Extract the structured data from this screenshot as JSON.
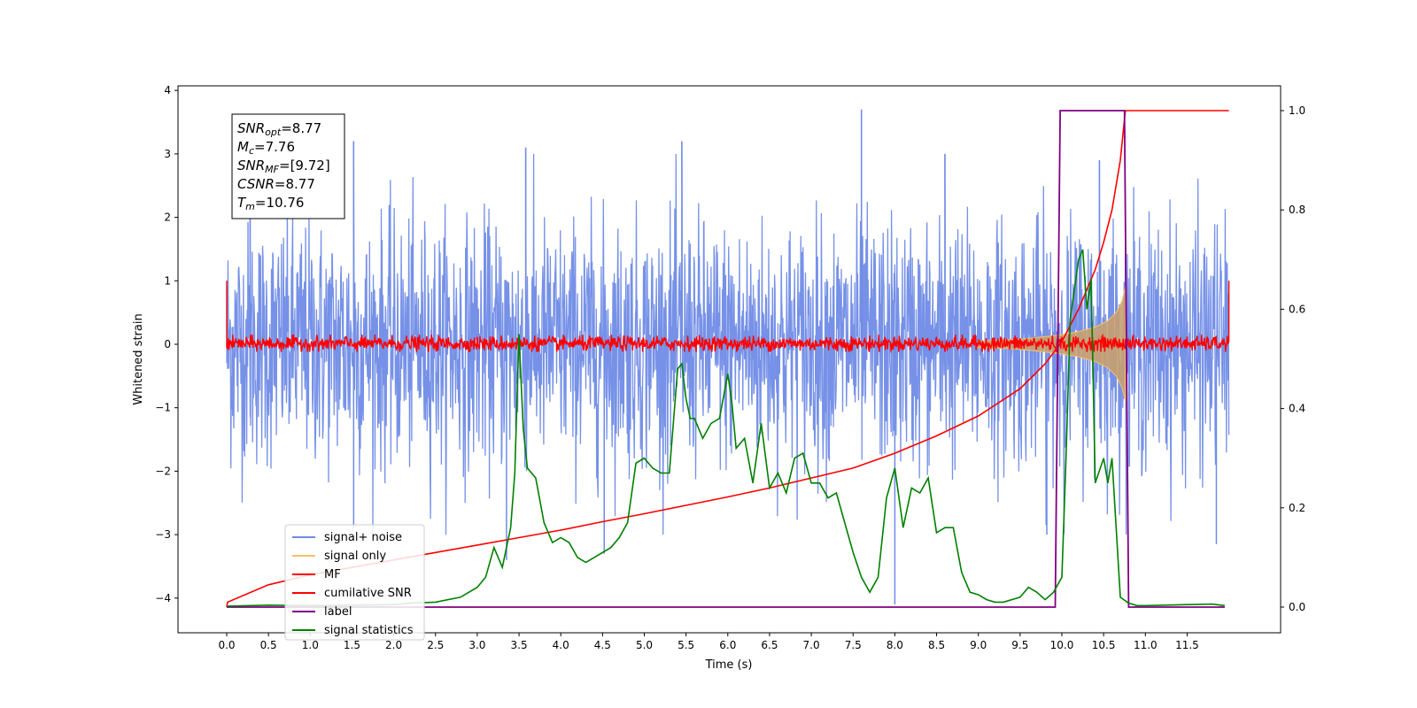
{
  "chart_data": {
    "type": "line",
    "xlabel": "Time (s)",
    "ylabel": "Whitened strain",
    "xlim": [
      -0.6,
      12.6
    ],
    "ylim": [
      -4.55,
      4.1
    ],
    "y2lim": [
      -0.05,
      1.05
    ],
    "x_ticks": [
      "0.0",
      "0.5",
      "1.0",
      "1.5",
      "2.0",
      "2.5",
      "3.0",
      "3.5",
      "4.0",
      "4.5",
      "5.0",
      "5.5",
      "6.0",
      "6.5",
      "7.0",
      "7.5",
      "8.0",
      "8.5",
      "9.0",
      "9.5",
      "10.0",
      "10.5",
      "11.0",
      "11.5"
    ],
    "x_tick_values": [
      0.0,
      0.5,
      1.0,
      1.5,
      2.0,
      2.5,
      3.0,
      3.5,
      4.0,
      4.5,
      5.0,
      5.5,
      6.0,
      6.5,
      7.0,
      7.5,
      8.0,
      8.5,
      9.0,
      9.5,
      10.0,
      10.5,
      11.0,
      11.5
    ],
    "y_ticks": [
      "4",
      "3",
      "2",
      "1",
      "0",
      "−1",
      "−2",
      "−3",
      "−4"
    ],
    "y_tick_values": [
      4,
      3,
      2,
      1,
      0,
      -1,
      -2,
      -3,
      -4
    ],
    "y2_ticks": [
      "1.0",
      "0.8",
      "0.6",
      "0.4",
      "0.2",
      "0.0"
    ],
    "y2_tick_values": [
      1.0,
      0.8,
      0.6,
      0.4,
      0.2,
      0.0
    ],
    "grid": false,
    "legend_position": "lower-left",
    "legend": [
      {
        "label": "signal+ noise",
        "color": "#6f8be6"
      },
      {
        "label": "signal only",
        "color": "#f5c06b"
      },
      {
        "label": "MF",
        "color": "#ff0000"
      },
      {
        "label": "cumilative SNR",
        "color": "#ff0000"
      },
      {
        "label": "label",
        "color": "#800080"
      },
      {
        "label": "signal statistics",
        "color": "#008000"
      }
    ],
    "annotation": [
      {
        "name": "SNR",
        "sub": "opt",
        "value": "=8.77"
      },
      {
        "name": "M",
        "sub": "c",
        "value": "=7.76"
      },
      {
        "name": "SNR",
        "sub": "MF",
        "value": "=[9.72]"
      },
      {
        "name": "CSNR",
        "sub": "",
        "value": "=8.77"
      },
      {
        "name": "T",
        "sub": "m",
        "value": "=10.76"
      }
    ],
    "series": [
      {
        "name": "signal+ noise",
        "axis": "left",
        "color": "#6f8be6",
        "description_range": [
          -2.9,
          3.7
        ],
        "x_range": [
          0.0,
          12.0
        ],
        "peaks_high": [
          [
            0.28,
            2.8
          ],
          [
            1.52,
            3.2
          ],
          [
            3.58,
            3.1
          ],
          [
            5.45,
            3.2
          ],
          [
            7.6,
            3.7
          ],
          [
            8.6,
            3.0
          ],
          [
            10.45,
            2.9
          ]
        ],
        "peaks_low": [
          [
            1.52,
            -2.9
          ],
          [
            3.35,
            -3.4
          ],
          [
            4.52,
            -3.3
          ],
          [
            8.0,
            -4.1
          ],
          [
            9.82,
            -3.0
          ],
          [
            11.85,
            -3.15
          ]
        ]
      },
      {
        "name": "signal only",
        "axis": "left",
        "color": "#f5c06b",
        "envelope_x": [
          9.0,
          9.5,
          10.0,
          10.2,
          10.4,
          10.55,
          10.65,
          10.72,
          10.76
        ],
        "envelope_y": [
          0.05,
          0.08,
          0.15,
          0.2,
          0.27,
          0.37,
          0.5,
          0.68,
          0.9
        ]
      },
      {
        "name": "MF",
        "axis": "left",
        "color": "#ff0000",
        "x_range": [
          0.0,
          12.0
        ],
        "band": [
          -0.12,
          0.15
        ]
      },
      {
        "name": "cumilative SNR",
        "axis": "right",
        "color": "#ff0000",
        "x": [
          0.0,
          0.01,
          0.5,
          1.0,
          1.5,
          2.0,
          2.5,
          3.0,
          3.5,
          4.0,
          4.5,
          5.0,
          5.5,
          6.0,
          6.5,
          7.0,
          7.5,
          8.0,
          8.5,
          9.0,
          9.5,
          9.8,
          10.0,
          10.2,
          10.4,
          10.5,
          10.6,
          10.7,
          10.76,
          12.0
        ],
        "y": [
          0.0,
          0.01,
          0.045,
          0.065,
          0.08,
          0.095,
          0.11,
          0.125,
          0.14,
          0.155,
          0.172,
          0.188,
          0.205,
          0.222,
          0.24,
          0.26,
          0.28,
          0.31,
          0.345,
          0.385,
          0.44,
          0.49,
          0.535,
          0.6,
          0.68,
          0.735,
          0.8,
          0.9,
          1.0,
          1.0
        ]
      },
      {
        "name": "label",
        "axis": "right",
        "color": "#800080",
        "x": [
          0.0,
          9.92,
          9.98,
          10.75,
          10.8,
          11.95
        ],
        "y": [
          0.0,
          0.0,
          1.0,
          1.0,
          0.0,
          0.0
        ]
      },
      {
        "name": "signal statistics",
        "axis": "right",
        "color": "#008000",
        "x": [
          0.0,
          0.5,
          1.0,
          1.5,
          2.0,
          2.2,
          2.5,
          2.8,
          3.0,
          3.1,
          3.2,
          3.3,
          3.4,
          3.45,
          3.5,
          3.55,
          3.6,
          3.7,
          3.8,
          3.9,
          4.0,
          4.1,
          4.2,
          4.3,
          4.4,
          4.5,
          4.6,
          4.7,
          4.8,
          4.9,
          5.0,
          5.1,
          5.2,
          5.3,
          5.4,
          5.45,
          5.5,
          5.55,
          5.6,
          5.7,
          5.8,
          5.9,
          6.0,
          6.05,
          6.1,
          6.2,
          6.3,
          6.4,
          6.5,
          6.6,
          6.7,
          6.8,
          6.9,
          7.0,
          7.1,
          7.2,
          7.3,
          7.4,
          7.5,
          7.6,
          7.7,
          7.8,
          7.9,
          8.0,
          8.1,
          8.2,
          8.3,
          8.4,
          8.5,
          8.6,
          8.7,
          8.8,
          8.9,
          9.0,
          9.1,
          9.2,
          9.3,
          9.5,
          9.6,
          9.7,
          9.8,
          9.9,
          10.0,
          10.05,
          10.1,
          10.2,
          10.25,
          10.3,
          10.35,
          10.4,
          10.5,
          10.55,
          10.6,
          10.7,
          10.8,
          10.9,
          11.0,
          11.5,
          11.8,
          11.95
        ],
        "y": [
          0.002,
          0.004,
          0.003,
          0.004,
          0.005,
          0.008,
          0.01,
          0.02,
          0.04,
          0.06,
          0.12,
          0.08,
          0.16,
          0.27,
          0.55,
          0.36,
          0.28,
          0.26,
          0.17,
          0.13,
          0.14,
          0.13,
          0.1,
          0.09,
          0.1,
          0.11,
          0.12,
          0.14,
          0.17,
          0.29,
          0.3,
          0.28,
          0.27,
          0.27,
          0.48,
          0.49,
          0.42,
          0.38,
          0.38,
          0.34,
          0.37,
          0.38,
          0.47,
          0.41,
          0.32,
          0.34,
          0.25,
          0.37,
          0.24,
          0.27,
          0.23,
          0.3,
          0.31,
          0.25,
          0.25,
          0.22,
          0.23,
          0.17,
          0.11,
          0.06,
          0.03,
          0.06,
          0.22,
          0.28,
          0.16,
          0.24,
          0.23,
          0.26,
          0.15,
          0.16,
          0.16,
          0.07,
          0.03,
          0.025,
          0.015,
          0.01,
          0.01,
          0.02,
          0.04,
          0.03,
          0.015,
          0.03,
          0.06,
          0.3,
          0.58,
          0.7,
          0.72,
          0.6,
          0.66,
          0.25,
          0.3,
          0.25,
          0.3,
          0.02,
          0.008,
          0.003,
          0.003,
          0.005,
          0.006,
          0.003
        ]
      }
    ]
  }
}
